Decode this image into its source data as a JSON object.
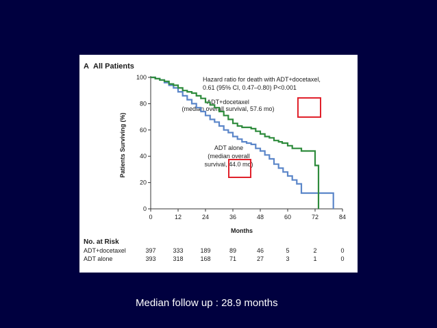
{
  "slide": {
    "caption": "Median follow up : 28.9 months"
  },
  "chart_data": {
    "type": "line",
    "panel_label": "A",
    "title": "All Patients",
    "xlabel": "Months",
    "ylabel": "Patients Surviving (%)",
    "xlim": [
      0,
      84
    ],
    "ylim": [
      0,
      100
    ],
    "xticks": [
      0,
      12,
      24,
      36,
      48,
      60,
      72,
      84
    ],
    "yticks": [
      0,
      20,
      40,
      60,
      80,
      100
    ],
    "annotations": {
      "hazard_line1": "Hazard ratio for death with ADT+docetaxel,",
      "hazard_line2": "0.61 (95% CI, 0.47–0.80) P<0.001",
      "docetaxel_line1": "ADT+docetaxel",
      "docetaxel_line2": "(median overall survival, 57.6 mo)",
      "adt_line1": "ADT alone",
      "adt_line2": "(median overall",
      "adt_line3": "survival, 44.0 mo)",
      "highlight_1": 57.6,
      "highlight_2": 44.0
    },
    "colors": {
      "ADT+docetaxel": "#2e8b3c",
      "ADT alone": "#5b86c9",
      "highlight": "#e0202a"
    },
    "series": [
      {
        "name": "ADT+docetaxel",
        "x": [
          0,
          2,
          4,
          6,
          8,
          10,
          12,
          14,
          16,
          18,
          20,
          22,
          24,
          26,
          28,
          30,
          32,
          34,
          36,
          38,
          40,
          42,
          44,
          46,
          48,
          50,
          52,
          54,
          56,
          57.6,
          60,
          62,
          66,
          70,
          72,
          73.5
        ],
        "y": [
          100,
          99,
          98,
          97,
          95,
          94,
          92,
          90,
          89,
          88,
          86,
          84,
          81,
          79,
          77,
          74,
          71,
          68,
          65,
          63,
          62,
          62,
          61,
          59,
          57,
          55,
          54,
          52,
          51,
          50,
          48,
          46,
          44,
          44,
          33,
          0
        ]
      },
      {
        "name": "ADT alone",
        "x": [
          0,
          2,
          4,
          6,
          8,
          10,
          12,
          14,
          16,
          18,
          20,
          22,
          24,
          26,
          28,
          30,
          32,
          34,
          36,
          38,
          40,
          42,
          44,
          46,
          48,
          50,
          52,
          54,
          56,
          58,
          60,
          62,
          64,
          66,
          72,
          80
        ],
        "y": [
          100,
          99,
          98,
          96,
          94,
          92,
          89,
          86,
          83,
          80,
          77,
          74,
          71,
          68,
          66,
          63,
          60,
          58,
          55,
          53,
          51,
          50,
          49,
          46,
          44,
          41,
          38,
          34,
          31,
          28,
          25,
          22,
          19,
          12,
          12,
          0
        ]
      }
    ],
    "risk_table": {
      "heading": "No. at Risk",
      "rows": [
        {
          "label": "ADT+docetaxel",
          "values": [
            "397",
            "333",
            "189",
            "89",
            "46",
            "5",
            "2",
            "0"
          ]
        },
        {
          "label": "ADT alone",
          "values": [
            "393",
            "318",
            "168",
            "71",
            "27",
            "3",
            "1",
            "0"
          ]
        }
      ]
    }
  }
}
